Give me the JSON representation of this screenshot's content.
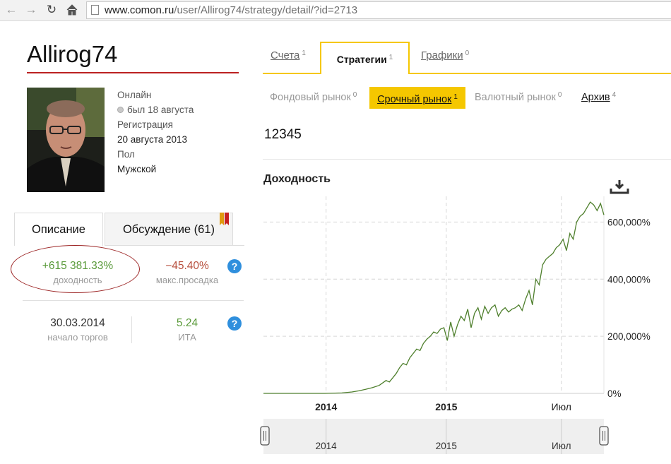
{
  "browser": {
    "url_domain": "www.comon.ru",
    "url_path": "/user/Allirog74/strategy/detail/?id=2713"
  },
  "profile": {
    "username": "Allirog74",
    "online_label": "Онлайн",
    "last_seen": "был 18 августа",
    "registration_label": "Регистрация",
    "registration_date": "20 августа 2013",
    "gender_label": "Пол",
    "gender_value": "Мужской"
  },
  "left_tabs": {
    "description": "Описание",
    "discussion": "Обсуждение (61)"
  },
  "stats": {
    "profit_value": "+615 381.33%",
    "profit_label": "доходность",
    "drawdown_value": "−45.40%",
    "drawdown_label": "макс.просадка",
    "start_value": "30.03.2014",
    "start_label": "начало торгов",
    "ita_value": "5.24",
    "ita_label": "ИТА",
    "help": "?"
  },
  "main_tabs": [
    {
      "label": "Счета",
      "count": "1"
    },
    {
      "label": "Стратегии",
      "count": "1"
    },
    {
      "label": "Графики",
      "count": "0"
    }
  ],
  "sub_tabs": [
    {
      "label": "Фондовый рынок",
      "count": "0"
    },
    {
      "label": "Срочный рынок",
      "count": "1"
    },
    {
      "label": "Валютный рынок",
      "count": "0"
    },
    {
      "label": "Архив",
      "count": "4"
    }
  ],
  "strategy_name": "12345",
  "colors": {
    "accent_yellow": "#f5c700",
    "profit_green": "#5a9a3a",
    "loss_red": "#b74e3c",
    "line_green": "#4e7f2c",
    "help_blue": "#2f8fdd"
  },
  "icons": {
    "download": "download-icon",
    "back": "back-arrow-icon",
    "forward": "forward-arrow-icon",
    "reload": "reload-icon",
    "home": "home-icon"
  },
  "chart_data": {
    "type": "line",
    "title": "Доходность",
    "x_axis": {
      "ticks": [
        "2014",
        "2015",
        "Июл"
      ],
      "range": [
        "2013-08",
        "2015-08"
      ]
    },
    "y_axis": {
      "ticks": [
        "0%",
        "200,000%",
        "400,000%",
        "600,000%"
      ],
      "ylim": [
        0,
        690000
      ],
      "position": "right"
    },
    "grid": true,
    "navigator_ticks": [
      "2014",
      "2015",
      "Июл"
    ],
    "series": [
      {
        "x": [
          0,
          0.18,
          0.23,
          0.26,
          0.28,
          0.3,
          0.32,
          0.34,
          0.36,
          0.37,
          0.38,
          0.39,
          0.4,
          0.41,
          0.42,
          0.43,
          0.44,
          0.45,
          0.46,
          0.47,
          0.48,
          0.49,
          0.5,
          0.51,
          0.52,
          0.53,
          0.54,
          0.55,
          0.56,
          0.57,
          0.58,
          0.59,
          0.6,
          0.61,
          0.62,
          0.63,
          0.64,
          0.65,
          0.66,
          0.67,
          0.68,
          0.69,
          0.7,
          0.71,
          0.72,
          0.73,
          0.74,
          0.75,
          0.76,
          0.77,
          0.78,
          0.79,
          0.8,
          0.81,
          0.82,
          0.83,
          0.84,
          0.85,
          0.86,
          0.87,
          0.88,
          0.89,
          0.9,
          0.91,
          0.92,
          0.93,
          0.94,
          0.95,
          0.96,
          0.97,
          0.98,
          0.99,
          1.0
        ],
        "values": [
          0,
          0,
          1500,
          5000,
          9000,
          14000,
          20000,
          28000,
          45000,
          40000,
          55000,
          70000,
          90000,
          105000,
          100000,
          125000,
          140000,
          155000,
          150000,
          175000,
          190000,
          200000,
          215000,
          210000,
          225000,
          230000,
          185000,
          250000,
          200000,
          240000,
          270000,
          255000,
          295000,
          230000,
          280000,
          300000,
          260000,
          305000,
          280000,
          300000,
          310000,
          270000,
          290000,
          300000,
          285000,
          295000,
          300000,
          310000,
          290000,
          330000,
          360000,
          310000,
          400000,
          380000,
          450000,
          470000,
          480000,
          490000,
          510000,
          520000,
          540000,
          500000,
          560000,
          540000,
          600000,
          620000,
          630000,
          650000,
          670000,
          660000,
          640000,
          665000,
          625000
        ]
      }
    ]
  }
}
